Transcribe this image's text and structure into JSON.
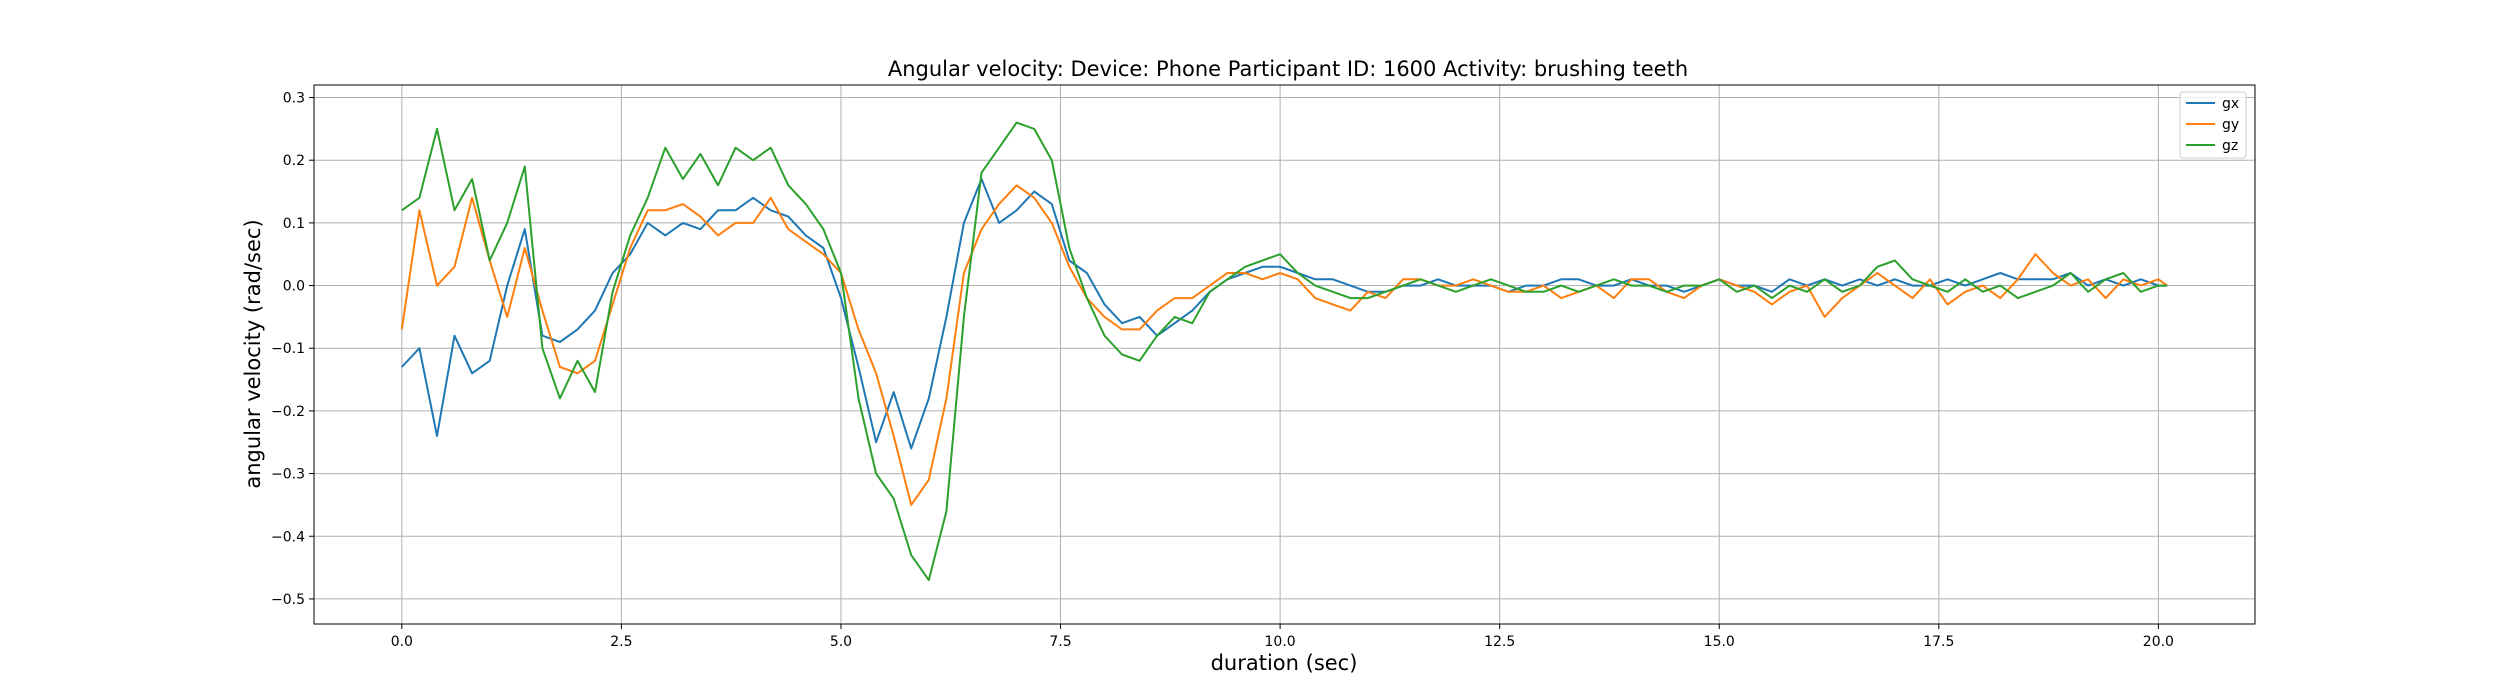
{
  "chart_data": {
    "type": "line",
    "title": "Angular velocity:  Device: Phone     Participant ID: 1600      Activity:  brushing teeth",
    "xlabel": "duration  (sec)",
    "ylabel": "angular velocity  (rad/sec)",
    "xlim": [
      -1.0,
      21.1
    ],
    "ylim": [
      -0.54,
      0.32
    ],
    "xticks": [
      0.0,
      2.5,
      5.0,
      7.5,
      10.0,
      12.5,
      15.0,
      17.5,
      20.0
    ],
    "xtick_labels": [
      "0.0",
      "2.5",
      "5.0",
      "7.5",
      "10.0",
      "12.5",
      "15.0",
      "17.5",
      "20.0"
    ],
    "yticks": [
      0.3,
      0.2,
      0.1,
      0.0,
      -0.1,
      -0.2,
      -0.3,
      -0.4,
      -0.5
    ],
    "ytick_labels": [
      "0.3",
      "0.2",
      "0.1",
      "0.0",
      "−0.1",
      "−0.2",
      "−0.3",
      "−0.4",
      "−0.5"
    ],
    "grid": true,
    "legend_position": "upper right",
    "x": [
      0.0,
      0.2,
      0.4,
      0.6,
      0.8,
      1.0,
      1.2,
      1.4,
      1.6,
      1.8,
      2.0,
      2.2,
      2.4,
      2.6,
      2.8,
      3.0,
      3.2,
      3.4,
      3.6,
      3.8,
      4.0,
      4.2,
      4.4,
      4.6,
      4.8,
      5.0,
      5.2,
      5.4,
      5.6,
      5.8,
      6.0,
      6.2,
      6.4,
      6.6,
      6.8,
      7.0,
      7.2,
      7.4,
      7.6,
      7.8,
      8.0,
      8.2,
      8.4,
      8.6,
      8.8,
      9.0,
      9.2,
      9.4,
      9.6,
      9.8,
      10.0,
      10.2,
      10.4,
      10.6,
      10.8,
      11.0,
      11.2,
      11.4,
      11.6,
      11.8,
      12.0,
      12.2,
      12.4,
      12.6,
      12.8,
      13.0,
      13.2,
      13.4,
      13.6,
      13.8,
      14.0,
      14.2,
      14.4,
      14.6,
      14.8,
      15.0,
      15.2,
      15.4,
      15.6,
      15.8,
      16.0,
      16.2,
      16.4,
      16.6,
      16.8,
      17.0,
      17.2,
      17.4,
      17.6,
      17.8,
      18.0,
      18.2,
      18.4,
      18.6,
      18.8,
      19.0,
      19.2,
      19.4,
      19.6,
      19.8,
      20.0,
      20.1
    ],
    "series": [
      {
        "name": "gx",
        "color": "#1f77b4",
        "values": [
          -0.13,
          -0.1,
          -0.24,
          -0.08,
          -0.14,
          -0.12,
          0.0,
          0.09,
          -0.08,
          -0.09,
          -0.07,
          -0.04,
          0.02,
          0.05,
          0.1,
          0.08,
          0.1,
          0.09,
          0.12,
          0.12,
          0.14,
          0.12,
          0.11,
          0.08,
          0.06,
          -0.02,
          -0.13,
          -0.25,
          -0.17,
          -0.26,
          -0.18,
          -0.05,
          0.1,
          0.17,
          0.1,
          0.12,
          0.15,
          0.13,
          0.04,
          0.02,
          -0.03,
          -0.06,
          -0.05,
          -0.08,
          -0.06,
          -0.04,
          -0.01,
          0.01,
          0.02,
          0.03,
          0.03,
          0.02,
          0.01,
          0.01,
          0.0,
          -0.01,
          -0.01,
          0.0,
          0.0,
          0.01,
          0.0,
          0.0,
          0.0,
          -0.01,
          0.0,
          0.0,
          0.01,
          0.01,
          0.0,
          0.0,
          0.01,
          0.0,
          0.0,
          -0.01,
          0.0,
          0.01,
          0.0,
          0.0,
          -0.01,
          0.01,
          0.0,
          0.01,
          0.0,
          0.01,
          0.0,
          0.01,
          0.0,
          0.0,
          0.01,
          0.0,
          0.01,
          0.02,
          0.01,
          0.01,
          0.01,
          0.02,
          0.0,
          0.01,
          0.0,
          0.01,
          0.0,
          0.0
        ]
      },
      {
        "name": "gy",
        "color": "#ff7f0e",
        "values": [
          -0.07,
          0.12,
          0.0,
          0.03,
          0.14,
          0.04,
          -0.05,
          0.06,
          -0.04,
          -0.13,
          -0.14,
          -0.12,
          -0.03,
          0.06,
          0.12,
          0.12,
          0.13,
          0.11,
          0.08,
          0.1,
          0.1,
          0.14,
          0.09,
          0.07,
          0.05,
          0.02,
          -0.07,
          -0.14,
          -0.24,
          -0.35,
          -0.31,
          -0.18,
          0.02,
          0.09,
          0.13,
          0.16,
          0.14,
          0.1,
          0.03,
          -0.02,
          -0.05,
          -0.07,
          -0.07,
          -0.04,
          -0.02,
          -0.02,
          0.0,
          0.02,
          0.02,
          0.01,
          0.02,
          0.01,
          -0.02,
          -0.03,
          -0.04,
          -0.01,
          -0.02,
          0.01,
          0.01,
          0.0,
          0.0,
          0.01,
          0.0,
          -0.01,
          -0.01,
          0.0,
          -0.02,
          -0.01,
          0.0,
          -0.02,
          0.01,
          0.01,
          -0.01,
          -0.02,
          0.0,
          0.01,
          0.0,
          -0.01,
          -0.03,
          -0.01,
          0.0,
          -0.05,
          -0.02,
          0.0,
          0.02,
          0.0,
          -0.02,
          0.01,
          -0.03,
          -0.01,
          0.0,
          -0.02,
          0.01,
          0.05,
          0.02,
          0.0,
          0.01,
          -0.02,
          0.01,
          0.0,
          0.01,
          0.0
        ]
      },
      {
        "name": "gz",
        "color": "#2ca02c",
        "values": [
          0.12,
          0.14,
          0.25,
          0.12,
          0.17,
          0.04,
          0.1,
          0.19,
          -0.1,
          -0.18,
          -0.12,
          -0.17,
          -0.01,
          0.08,
          0.14,
          0.22,
          0.17,
          0.21,
          0.16,
          0.22,
          0.2,
          0.22,
          0.16,
          0.13,
          0.09,
          0.02,
          -0.18,
          -0.3,
          -0.34,
          -0.43,
          -0.47,
          -0.36,
          -0.05,
          0.18,
          0.22,
          0.26,
          0.25,
          0.2,
          0.06,
          -0.02,
          -0.08,
          -0.11,
          -0.12,
          -0.08,
          -0.05,
          -0.06,
          -0.01,
          0.01,
          0.03,
          0.04,
          0.05,
          0.02,
          0.0,
          -0.01,
          -0.02,
          -0.02,
          -0.01,
          0.0,
          0.01,
          0.0,
          -0.01,
          0.0,
          0.01,
          0.0,
          -0.01,
          -0.01,
          0.0,
          -0.01,
          0.0,
          0.01,
          0.0,
          0.0,
          -0.01,
          0.0,
          0.0,
          0.01,
          -0.01,
          0.0,
          -0.02,
          0.0,
          -0.01,
          0.01,
          -0.01,
          0.0,
          0.03,
          0.04,
          0.01,
          0.0,
          -0.01,
          0.01,
          -0.01,
          0.0,
          -0.02,
          -0.01,
          0.0,
          0.02,
          -0.01,
          0.01,
          0.02,
          -0.01,
          0.0,
          0.0
        ]
      }
    ]
  }
}
